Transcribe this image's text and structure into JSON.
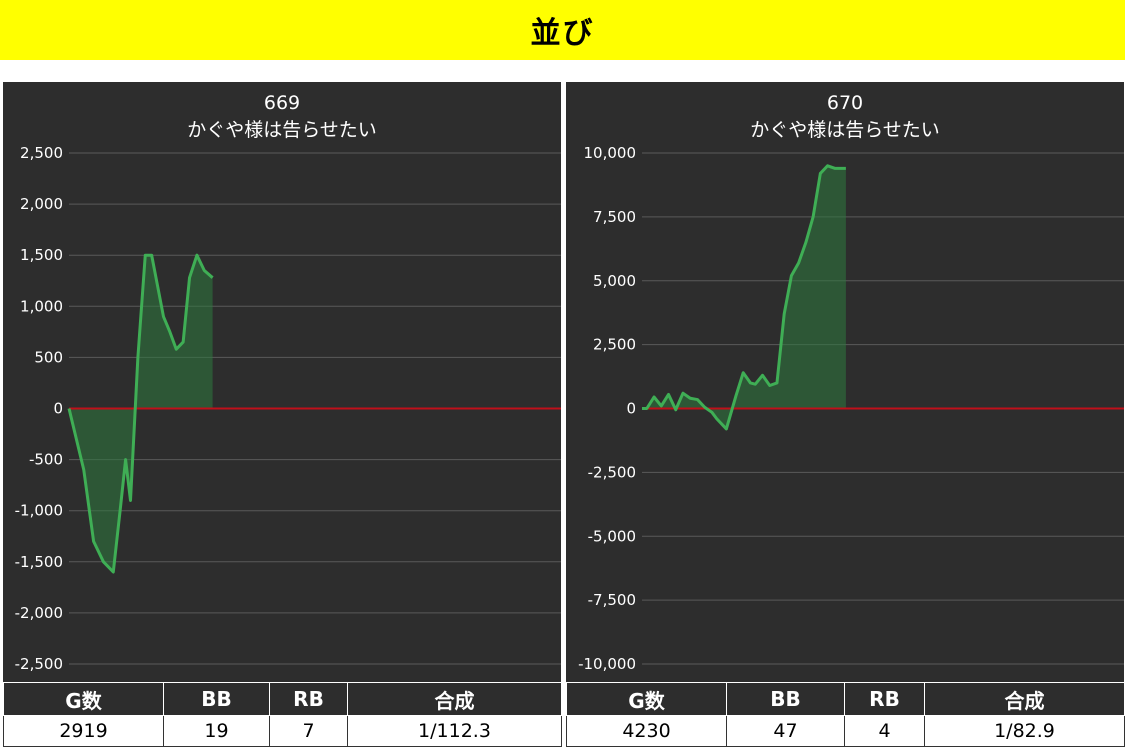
{
  "banner": {
    "title": "並び"
  },
  "colors": {
    "line": "#3fae55",
    "fill": "#2e7a3e",
    "zero": "#c0101a",
    "grid": "#5a5a5a",
    "panel": "#2d2d2d",
    "banner": "#ffff00"
  },
  "charts": [
    {
      "chart_data": {
        "type": "line",
        "title": "669",
        "subtitle": "かぐや様は告らせたい",
        "ylim": [
          -2500,
          2500
        ],
        "yticks": [
          2500,
          2000,
          1500,
          1000,
          500,
          0,
          -500,
          -1000,
          -1500,
          -2000,
          -2500
        ],
        "ytick_labels": [
          "2,500",
          "2,000",
          "1,500",
          "1,000",
          "500",
          "0",
          "-500",
          "-1,000",
          "-1,500",
          "-2,000",
          "-2,500"
        ],
        "xlim": [
          0,
          10000
        ],
        "grid": true,
        "fill_to_zero": true,
        "x": [
          0,
          300,
          500,
          700,
          900,
          1050,
          1150,
          1250,
          1400,
          1550,
          1680,
          1800,
          1920,
          2050,
          2180,
          2320,
          2450,
          2600,
          2750,
          2919
        ],
        "y": [
          0,
          -600,
          -1300,
          -1500,
          -1600,
          -950,
          -500,
          -900,
          500,
          1500,
          1500,
          1200,
          900,
          750,
          580,
          650,
          1280,
          1500,
          1350,
          1280
        ]
      },
      "stats": {
        "headers": [
          "G数",
          "BB",
          "RB",
          "合成"
        ],
        "values": [
          "2919",
          "19",
          "7",
          "1/112.3"
        ]
      }
    },
    {
      "chart_data": {
        "type": "line",
        "title": "670",
        "subtitle": "かぐや様は告らせたい",
        "ylim": [
          -10000,
          10000
        ],
        "yticks": [
          10000,
          7500,
          5000,
          2500,
          0,
          -2500,
          -5000,
          -7500,
          -10000
        ],
        "ytick_labels": [
          "10,000",
          "7,500",
          "5,000",
          "2,500",
          "0",
          "-2,500",
          "-5,000",
          "-7,500",
          "-10,000"
        ],
        "xlim": [
          0,
          10000
        ],
        "grid": true,
        "fill_to_zero": true,
        "x": [
          0,
          100,
          250,
          400,
          550,
          700,
          850,
          1000,
          1150,
          1300,
          1450,
          1550,
          1750,
          1950,
          2100,
          2250,
          2350,
          2500,
          2650,
          2800,
          2950,
          3100,
          3250,
          3400,
          3550,
          3700,
          3850,
          4000,
          4100,
          4230
        ],
        "y": [
          0,
          0,
          450,
          100,
          550,
          -50,
          600,
          400,
          350,
          50,
          -150,
          -400,
          -800,
          500,
          1400,
          1000,
          950,
          1300,
          900,
          1000,
          3700,
          5200,
          5700,
          6500,
          7500,
          9200,
          9500,
          9400,
          9400,
          9400
        ]
      },
      "stats": {
        "headers": [
          "G数",
          "BB",
          "RB",
          "合成"
        ],
        "values": [
          "4230",
          "47",
          "4",
          "1/82.9"
        ]
      }
    }
  ]
}
